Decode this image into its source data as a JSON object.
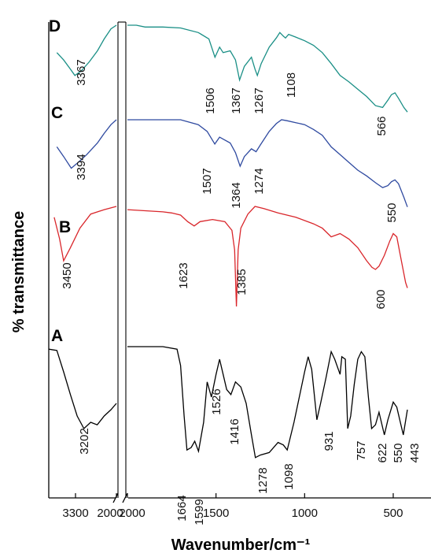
{
  "chart_data": {
    "type": "line",
    "xlabel": "Wavenumber/cm⁻¹",
    "ylabel": "% transmittance",
    "x_break": "2000",
    "x_ticks_left": [
      "3300",
      "2000"
    ],
    "x_ticks_right": [
      "2000",
      "1500",
      "1000",
      "500"
    ],
    "series": [
      {
        "name": "D",
        "color": "#1a8f86",
        "left": [
          [
            3500,
            0.7
          ],
          [
            3450,
            0.62
          ],
          [
            3400,
            0.52
          ],
          [
            3367,
            0.45
          ],
          [
            3320,
            0.5
          ],
          [
            3260,
            0.6
          ],
          [
            3200,
            0.72
          ],
          [
            3150,
            0.85
          ],
          [
            3100,
            0.96
          ],
          [
            3060,
            1.0
          ]
        ],
        "right": [
          [
            2000,
            1.0
          ],
          [
            1950,
            1.0
          ],
          [
            1900,
            0.98
          ],
          [
            1800,
            0.98
          ],
          [
            1700,
            0.97
          ],
          [
            1600,
            0.92
          ],
          [
            1540,
            0.85
          ],
          [
            1506,
            0.65
          ],
          [
            1480,
            0.76
          ],
          [
            1460,
            0.7
          ],
          [
            1420,
            0.72
          ],
          [
            1390,
            0.62
          ],
          [
            1367,
            0.4
          ],
          [
            1340,
            0.55
          ],
          [
            1300,
            0.65
          ],
          [
            1280,
            0.52
          ],
          [
            1267,
            0.45
          ],
          [
            1245,
            0.58
          ],
          [
            1200,
            0.76
          ],
          [
            1160,
            0.86
          ],
          [
            1140,
            0.92
          ],
          [
            1120,
            0.88
          ],
          [
            1108,
            0.86
          ],
          [
            1090,
            0.9
          ],
          [
            1050,
            0.87
          ],
          [
            1000,
            0.83
          ],
          [
            950,
            0.78
          ],
          [
            900,
            0.7
          ],
          [
            850,
            0.58
          ],
          [
            800,
            0.45
          ],
          [
            750,
            0.38
          ],
          [
            700,
            0.3
          ],
          [
            650,
            0.22
          ],
          [
            600,
            0.12
          ],
          [
            560,
            0.1
          ],
          [
            530,
            0.18
          ],
          [
            510,
            0.24
          ],
          [
            490,
            0.26
          ],
          [
            470,
            0.2
          ],
          [
            440,
            0.1
          ],
          [
            420,
            0.05
          ]
        ],
        "peaks": [
          "3367",
          "1506",
          "1367",
          "1267",
          "1108",
          "566"
        ]
      },
      {
        "name": "C",
        "color": "#2f4aa0",
        "left": [
          [
            3500,
            0.72
          ],
          [
            3450,
            0.62
          ],
          [
            3394,
            0.5
          ],
          [
            3350,
            0.55
          ],
          [
            3280,
            0.64
          ],
          [
            3200,
            0.76
          ],
          [
            3150,
            0.86
          ],
          [
            3100,
            0.95
          ],
          [
            3060,
            1.0
          ]
        ],
        "right": [
          [
            2000,
            1.0
          ],
          [
            1900,
            1.0
          ],
          [
            1800,
            1.0
          ],
          [
            1700,
            1.0
          ],
          [
            1600,
            0.95
          ],
          [
            1550,
            0.88
          ],
          [
            1507,
            0.75
          ],
          [
            1480,
            0.82
          ],
          [
            1460,
            0.8
          ],
          [
            1420,
            0.76
          ],
          [
            1390,
            0.66
          ],
          [
            1364,
            0.52
          ],
          [
            1340,
            0.62
          ],
          [
            1300,
            0.7
          ],
          [
            1274,
            0.67
          ],
          [
            1250,
            0.74
          ],
          [
            1200,
            0.88
          ],
          [
            1160,
            0.96
          ],
          [
            1130,
            1.0
          ],
          [
            1100,
            0.99
          ],
          [
            1050,
            0.97
          ],
          [
            1000,
            0.95
          ],
          [
            950,
            0.9
          ],
          [
            900,
            0.84
          ],
          [
            850,
            0.72
          ],
          [
            800,
            0.64
          ],
          [
            750,
            0.56
          ],
          [
            700,
            0.48
          ],
          [
            650,
            0.42
          ],
          [
            600,
            0.35
          ],
          [
            560,
            0.3
          ],
          [
            530,
            0.32
          ],
          [
            510,
            0.36
          ],
          [
            490,
            0.38
          ],
          [
            470,
            0.34
          ],
          [
            440,
            0.2
          ],
          [
            420,
            0.1
          ]
        ],
        "peaks": [
          "3394",
          "1507",
          "1364",
          "1274",
          "550"
        ]
      },
      {
        "name": "B",
        "color": "#d9262b",
        "left": [
          [
            3520,
            0.9
          ],
          [
            3480,
            0.7
          ],
          [
            3450,
            0.5
          ],
          [
            3400,
            0.62
          ],
          [
            3330,
            0.8
          ],
          [
            3250,
            0.93
          ],
          [
            3150,
            0.97
          ],
          [
            3060,
            1.0
          ]
        ],
        "right": [
          [
            2000,
            0.97
          ],
          [
            1900,
            0.96
          ],
          [
            1800,
            0.95
          ],
          [
            1750,
            0.94
          ],
          [
            1700,
            0.92
          ],
          [
            1660,
            0.86
          ],
          [
            1623,
            0.82
          ],
          [
            1590,
            0.86
          ],
          [
            1520,
            0.88
          ],
          [
            1450,
            0.86
          ],
          [
            1410,
            0.78
          ],
          [
            1395,
            0.6
          ],
          [
            1385,
            0.08
          ],
          [
            1375,
            0.6
          ],
          [
            1360,
            0.8
          ],
          [
            1320,
            0.93
          ],
          [
            1280,
            1.0
          ],
          [
            1230,
            0.98
          ],
          [
            1150,
            0.94
          ],
          [
            1050,
            0.9
          ],
          [
            950,
            0.84
          ],
          [
            900,
            0.8
          ],
          [
            850,
            0.72
          ],
          [
            800,
            0.75
          ],
          [
            750,
            0.7
          ],
          [
            700,
            0.62
          ],
          [
            650,
            0.5
          ],
          [
            620,
            0.44
          ],
          [
            600,
            0.42
          ],
          [
            580,
            0.45
          ],
          [
            550,
            0.55
          ],
          [
            520,
            0.68
          ],
          [
            500,
            0.75
          ],
          [
            480,
            0.72
          ],
          [
            460,
            0.55
          ],
          [
            430,
            0.3
          ],
          [
            420,
            0.25
          ]
        ],
        "peaks": [
          "3450",
          "1623",
          "1385",
          "600"
        ]
      },
      {
        "name": "A",
        "color": "#000000",
        "left": [
          [
            3560,
            0.98
          ],
          [
            3500,
            0.97
          ],
          [
            3450,
            0.8
          ],
          [
            3400,
            0.62
          ],
          [
            3350,
            0.45
          ],
          [
            3300,
            0.35
          ],
          [
            3250,
            0.4
          ],
          [
            3202,
            0.38
          ],
          [
            3150,
            0.45
          ],
          [
            3100,
            0.5
          ],
          [
            3060,
            0.55
          ]
        ],
        "right": [
          [
            2000,
            1.0
          ],
          [
            1900,
            1.0
          ],
          [
            1800,
            1.0
          ],
          [
            1720,
            0.98
          ],
          [
            1700,
            0.85
          ],
          [
            1680,
            0.45
          ],
          [
            1664,
            0.18
          ],
          [
            1640,
            0.2
          ],
          [
            1620,
            0.25
          ],
          [
            1599,
            0.17
          ],
          [
            1570,
            0.4
          ],
          [
            1550,
            0.72
          ],
          [
            1526,
            0.6
          ],
          [
            1500,
            0.78
          ],
          [
            1480,
            0.9
          ],
          [
            1460,
            0.78
          ],
          [
            1440,
            0.66
          ],
          [
            1416,
            0.62
          ],
          [
            1390,
            0.72
          ],
          [
            1360,
            0.68
          ],
          [
            1330,
            0.55
          ],
          [
            1300,
            0.3
          ],
          [
            1278,
            0.12
          ],
          [
            1250,
            0.14
          ],
          [
            1200,
            0.16
          ],
          [
            1150,
            0.24
          ],
          [
            1120,
            0.22
          ],
          [
            1098,
            0.18
          ],
          [
            1060,
            0.4
          ],
          [
            1000,
            0.8
          ],
          [
            980,
            0.92
          ],
          [
            960,
            0.82
          ],
          [
            931,
            0.42
          ],
          [
            910,
            0.55
          ],
          [
            880,
            0.75
          ],
          [
            850,
            0.96
          ],
          [
            830,
            0.9
          ],
          [
            800,
            0.78
          ],
          [
            790,
            0.92
          ],
          [
            770,
            0.9
          ],
          [
            757,
            0.35
          ],
          [
            740,
            0.45
          ],
          [
            720,
            0.7
          ],
          [
            700,
            0.9
          ],
          [
            680,
            0.96
          ],
          [
            660,
            0.92
          ],
          [
            640,
            0.6
          ],
          [
            622,
            0.35
          ],
          [
            600,
            0.38
          ],
          [
            580,
            0.48
          ],
          [
            550,
            0.3
          ],
          [
            530,
            0.42
          ],
          [
            500,
            0.56
          ],
          [
            480,
            0.52
          ],
          [
            460,
            0.4
          ],
          [
            443,
            0.3
          ],
          [
            420,
            0.5
          ]
        ],
        "peaks": [
          "3202",
          "1664",
          "1599",
          "1526",
          "1416",
          "1278",
          "1098",
          "931",
          "757",
          "622",
          "550",
          "443"
        ]
      }
    ]
  }
}
